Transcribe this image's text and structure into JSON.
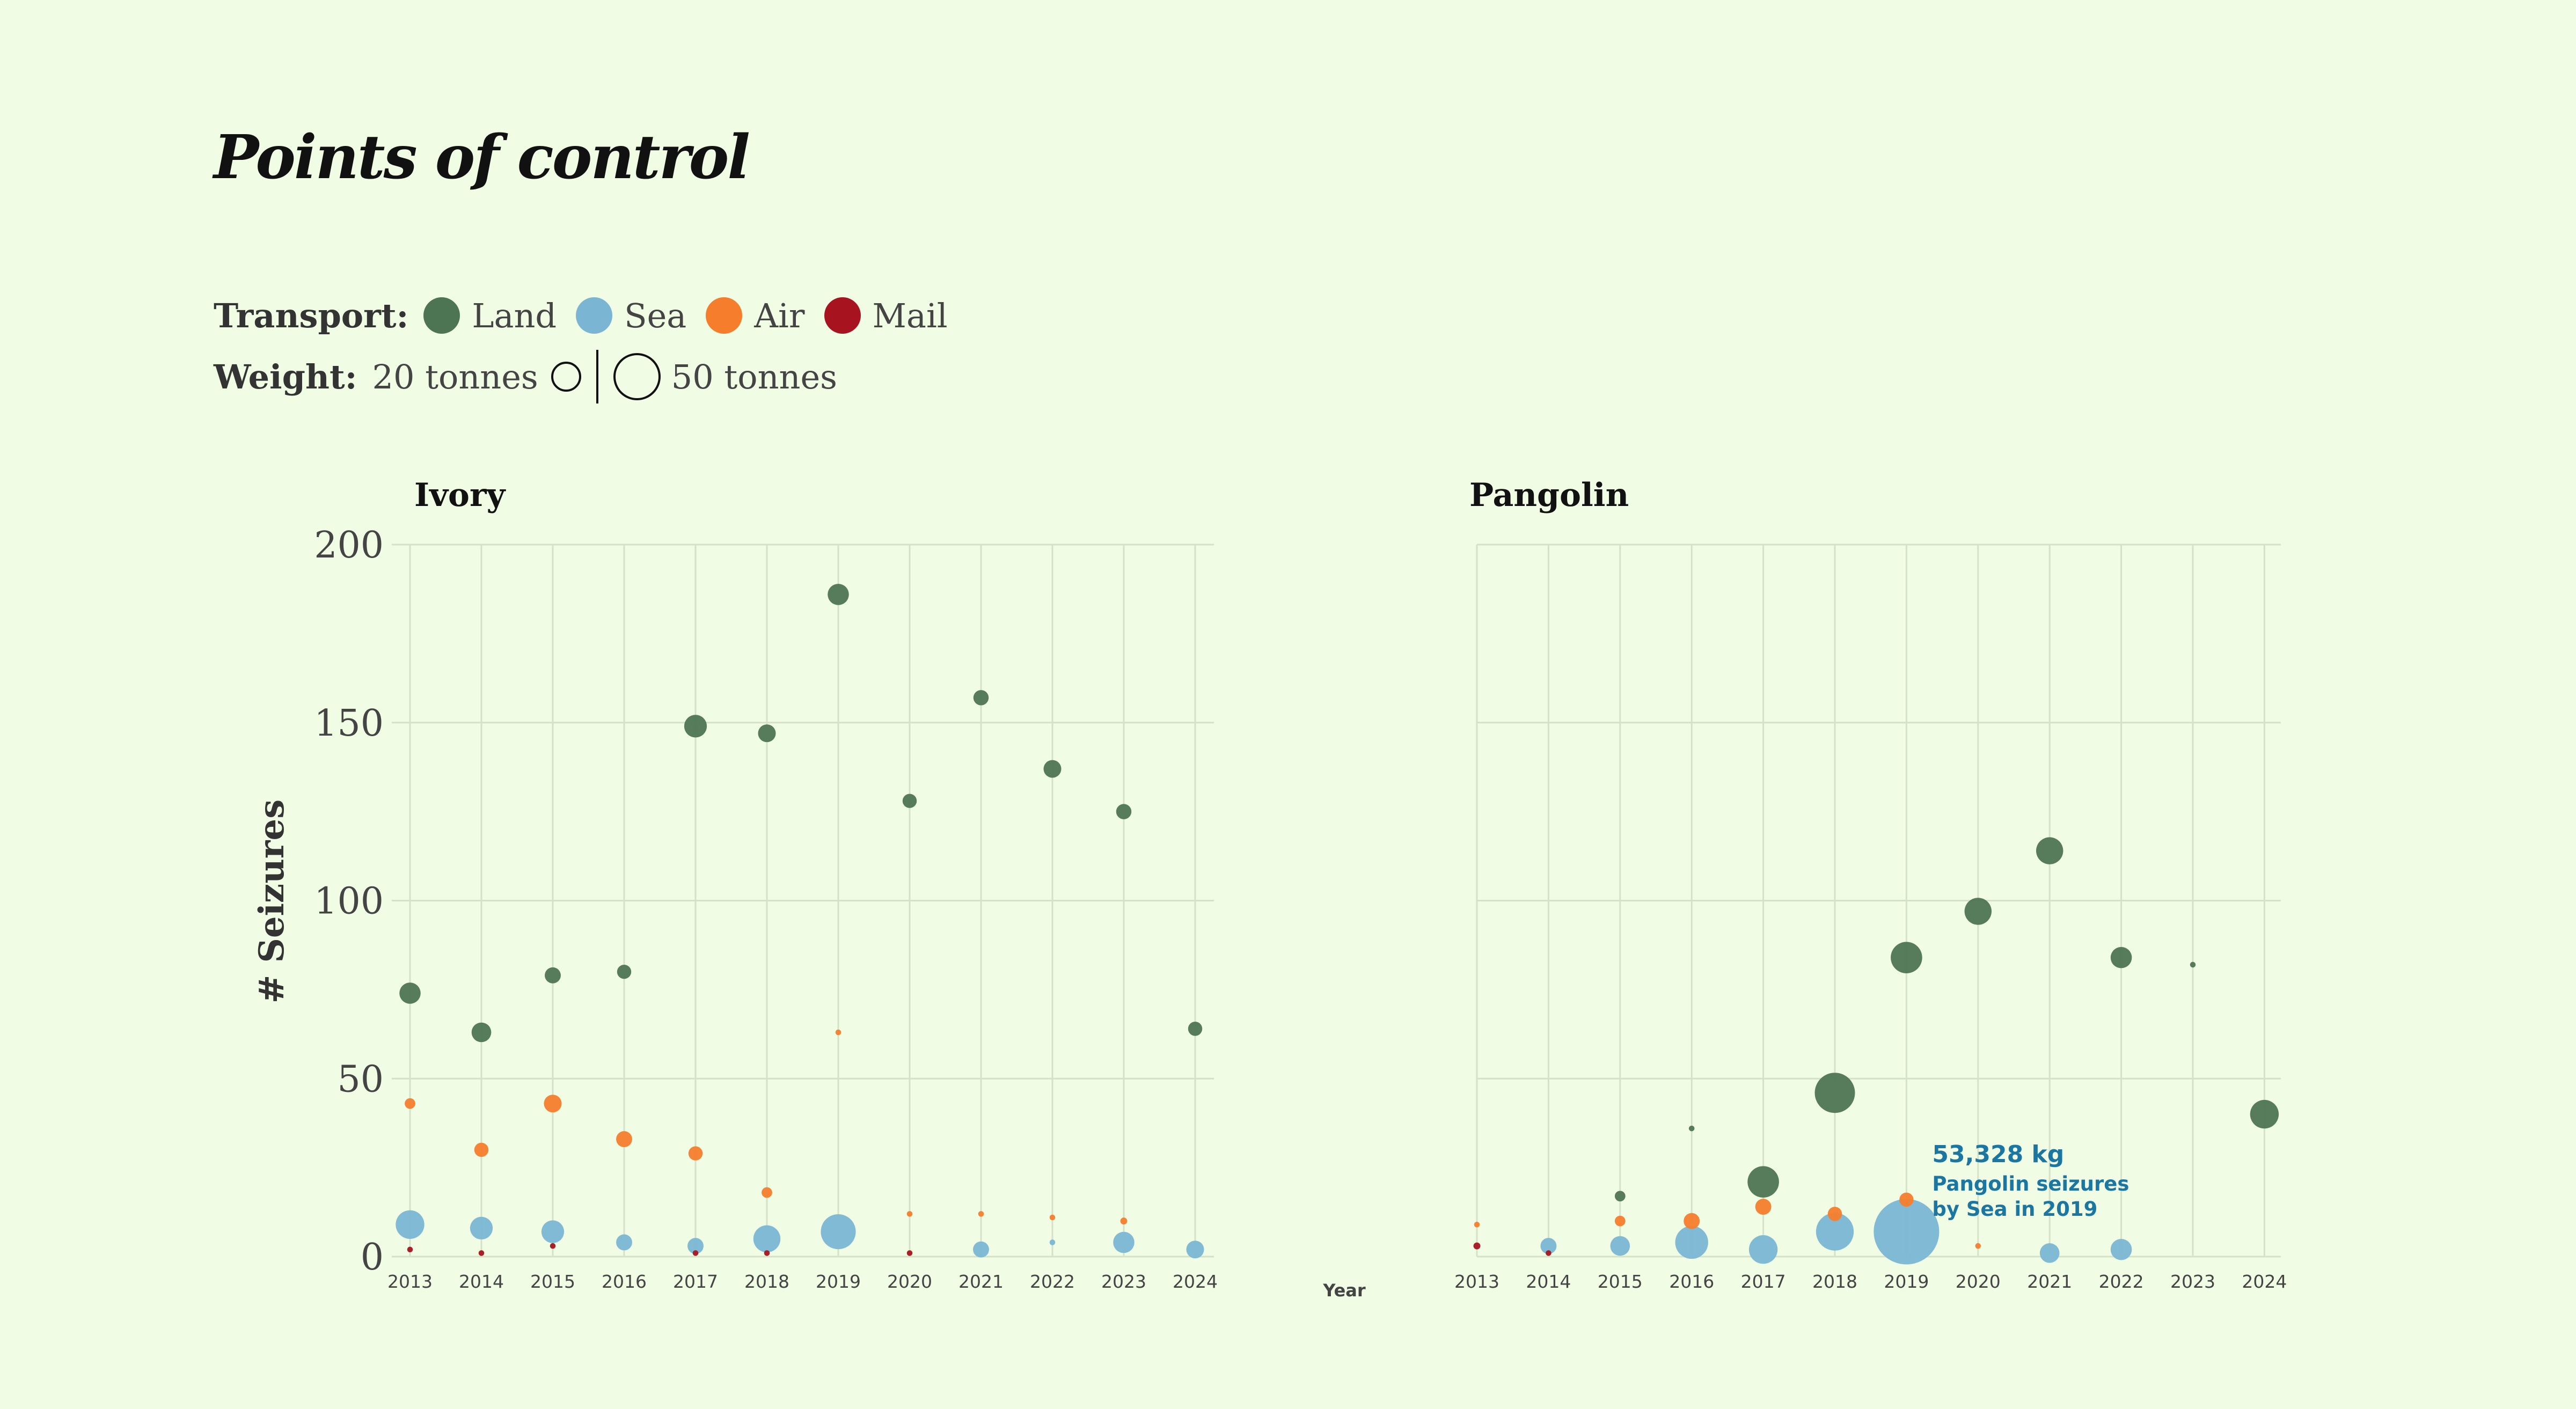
{
  "title": "Points of control",
  "legend": {
    "transport_label": "Transport:",
    "items": [
      {
        "name": "Land",
        "color": "#4e7553"
      },
      {
        "name": "Sea",
        "color": "#7ab6d3"
      },
      {
        "name": "Air",
        "color": "#f57d2c"
      },
      {
        "name": "Mail",
        "color": "#a7141f"
      }
    ],
    "weight_label": "Weight:",
    "weight_small": "20 tonnes",
    "weight_large": "50 tonnes"
  },
  "chart_data": [
    {
      "type": "scatter",
      "title": "Ivory",
      "ylabel": "# Seizures",
      "ylim": [
        0,
        200
      ],
      "yticks": [
        0,
        50,
        100,
        150,
        200
      ],
      "x": [
        "2013",
        "2014",
        "2015",
        "2016",
        "2017",
        "2018",
        "2019",
        "2020",
        "2021",
        "2022",
        "2023",
        "2024"
      ],
      "size_unit": "tonnes",
      "series": [
        {
          "name": "Land",
          "color": "#4e7553",
          "points": [
            {
              "x": "2013",
              "y": 74,
              "w": 5.6
            },
            {
              "x": "2014",
              "y": 63,
              "w": 4.8
            },
            {
              "x": "2015",
              "y": 79,
              "w": 3.2
            },
            {
              "x": "2016",
              "y": 80,
              "w": 2.5
            },
            {
              "x": "2017",
              "y": 149,
              "w": 6.4
            },
            {
              "x": "2018",
              "y": 147,
              "w": 3.9
            },
            {
              "x": "2019",
              "y": 186,
              "w": 5.6
            },
            {
              "x": "2020",
              "y": 128,
              "w": 2.5
            },
            {
              "x": "2021",
              "y": 157,
              "w": 2.9
            },
            {
              "x": "2022",
              "y": 137,
              "w": 3.9
            },
            {
              "x": "2023",
              "y": 125,
              "w": 2.9
            },
            {
              "x": "2024",
              "y": 64,
              "w": 2.5
            }
          ]
        },
        {
          "name": "Sea",
          "color": "#7ab6d3",
          "points": [
            {
              "x": "2013",
              "y": 9,
              "w": 10.2
            },
            {
              "x": "2014",
              "y": 8,
              "w": 6.4
            },
            {
              "x": "2015",
              "y": 7,
              "w": 6.4
            },
            {
              "x": "2016",
              "y": 4,
              "w": 3.2
            },
            {
              "x": "2017",
              "y": 3,
              "w": 3.2
            },
            {
              "x": "2018",
              "y": 5,
              "w": 9.1
            },
            {
              "x": "2019",
              "y": 7,
              "w": 15.2
            },
            {
              "x": "2021",
              "y": 2,
              "w": 3.2
            },
            {
              "x": "2022",
              "y": 4,
              "w": 0.4
            },
            {
              "x": "2023",
              "y": 4,
              "w": 5.6
            },
            {
              "x": "2024",
              "y": 2,
              "w": 3.9
            }
          ]
        },
        {
          "name": "Air",
          "color": "#f57d2c",
          "points": [
            {
              "x": "2013",
              "y": 43,
              "w": 1.4
            },
            {
              "x": "2014",
              "y": 30,
              "w": 2.5
            },
            {
              "x": "2015",
              "y": 43,
              "w": 3.9
            },
            {
              "x": "2016",
              "y": 33,
              "w": 3.2
            },
            {
              "x": "2017",
              "y": 29,
              "w": 2.5
            },
            {
              "x": "2018",
              "y": 18,
              "w": 1.4
            },
            {
              "x": "2019",
              "y": 63,
              "w": 0.4
            },
            {
              "x": "2020",
              "y": 12,
              "w": 0.4
            },
            {
              "x": "2021",
              "y": 12,
              "w": 0.4
            },
            {
              "x": "2022",
              "y": 11,
              "w": 0.4
            },
            {
              "x": "2023",
              "y": 10,
              "w": 0.6
            }
          ]
        },
        {
          "name": "Mail",
          "color": "#a7141f",
          "points": [
            {
              "x": "2013",
              "y": 2,
              "w": 0.4
            },
            {
              "x": "2014",
              "y": 1,
              "w": 0.4
            },
            {
              "x": "2015",
              "y": 3,
              "w": 0.4
            },
            {
              "x": "2017",
              "y": 1,
              "w": 0.4
            },
            {
              "x": "2018",
              "y": 1,
              "w": 0.4
            },
            {
              "x": "2020",
              "y": 1,
              "w": 0.4
            }
          ]
        }
      ]
    },
    {
      "type": "scatter",
      "title": "Pangolin",
      "xlabel": "Year",
      "ylim": [
        0,
        200
      ],
      "yticks": [
        0,
        50,
        100,
        150,
        200
      ],
      "x": [
        "2013",
        "2014",
        "2015",
        "2016",
        "2017",
        "2018",
        "2019",
        "2020",
        "2021",
        "2022",
        "2023",
        "2024"
      ],
      "size_unit": "tonnes",
      "series": [
        {
          "name": "Land",
          "color": "#4e7553",
          "points": [
            {
              "x": "2015",
              "y": 17,
              "w": 1.4
            },
            {
              "x": "2016",
              "y": 36,
              "w": 0.4
            },
            {
              "x": "2017",
              "y": 21,
              "w": 12.3
            },
            {
              "x": "2018",
              "y": 46,
              "w": 20.1
            },
            {
              "x": "2019",
              "y": 84,
              "w": 12.3
            },
            {
              "x": "2020",
              "y": 97,
              "w": 9.1
            },
            {
              "x": "2021",
              "y": 114,
              "w": 9.1
            },
            {
              "x": "2022",
              "y": 84,
              "w": 5.6
            },
            {
              "x": "2023",
              "y": 82,
              "w": 0.4
            },
            {
              "x": "2024",
              "y": 40,
              "w": 10.2
            }
          ]
        },
        {
          "name": "Sea",
          "color": "#7ab6d3",
          "points": [
            {
              "x": "2014",
              "y": 3,
              "w": 3.2
            },
            {
              "x": "2015",
              "y": 3,
              "w": 4.8
            },
            {
              "x": "2016",
              "y": 4,
              "w": 13.5
            },
            {
              "x": "2017",
              "y": 2,
              "w": 10.2
            },
            {
              "x": "2018",
              "y": 7,
              "w": 17.7
            },
            {
              "x": "2019",
              "y": 7,
              "w": 53.3
            },
            {
              "x": "2021",
              "y": 1,
              "w": 4.8
            },
            {
              "x": "2022",
              "y": 2,
              "w": 5.6
            }
          ]
        },
        {
          "name": "Air",
          "color": "#f57d2c",
          "points": [
            {
              "x": "2013",
              "y": 9,
              "w": 0.4
            },
            {
              "x": "2015",
              "y": 10,
              "w": 1.4
            },
            {
              "x": "2016",
              "y": 10,
              "w": 3.2
            },
            {
              "x": "2017",
              "y": 14,
              "w": 3.2
            },
            {
              "x": "2018",
              "y": 12,
              "w": 2.5
            },
            {
              "x": "2019",
              "y": 16,
              "w": 2.5
            },
            {
              "x": "2020",
              "y": 3,
              "w": 0.4
            }
          ]
        },
        {
          "name": "Mail",
          "color": "#a7141f",
          "points": [
            {
              "x": "2013",
              "y": 3,
              "w": 0.6
            },
            {
              "x": "2014",
              "y": 1,
              "w": 0.4
            }
          ]
        }
      ],
      "annotation": {
        "x": "2019",
        "series": "Sea",
        "value": "53,328 kg",
        "line1": "Pangolin seizures",
        "line2": "by Sea in 2019",
        "color": "#1b76a2"
      }
    }
  ]
}
